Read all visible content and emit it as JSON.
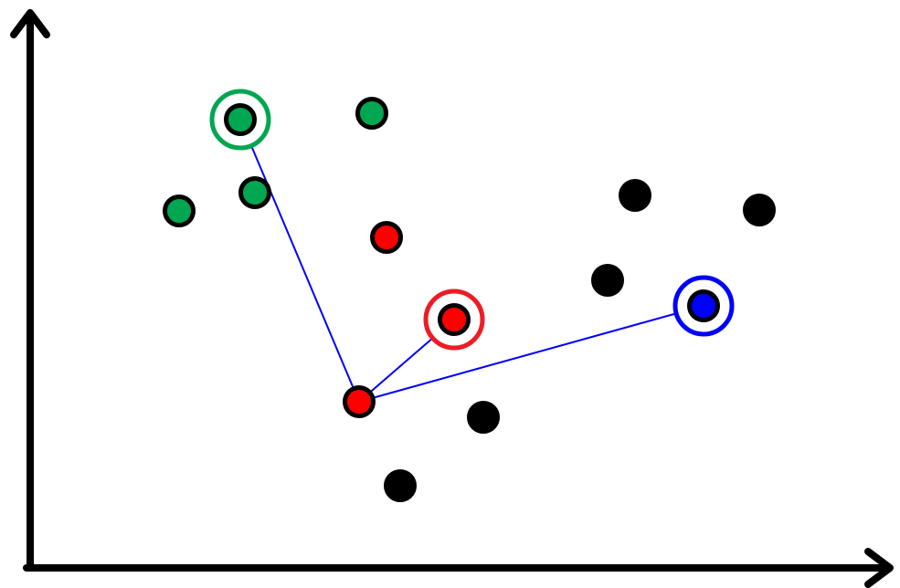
{
  "colors": {
    "background": "#ffffff",
    "axis": "#000000",
    "green": "#00a651",
    "red": "#ff0000",
    "blue": "#0000ff",
    "black": "#000000",
    "highlight_green": "#00a651",
    "highlight_red": "#ed1c24",
    "highlight_blue": "#0000ff",
    "connection": "#0000ff"
  },
  "points": [
    {
      "id": "p1",
      "color": "green",
      "highlighted": true,
      "highlight_color": "highlight_green"
    },
    {
      "id": "p2",
      "color": "green",
      "highlighted": false
    },
    {
      "id": "p3",
      "color": "green",
      "highlighted": false
    },
    {
      "id": "p4",
      "color": "green",
      "highlighted": false
    },
    {
      "id": "p5",
      "color": "red",
      "highlighted": false
    },
    {
      "id": "p6",
      "color": "red",
      "highlighted": true,
      "highlight_color": "highlight_red"
    },
    {
      "id": "p7",
      "color": "red",
      "highlighted": false,
      "is_origin": true
    },
    {
      "id": "p8",
      "color": "blue",
      "highlighted": true,
      "highlight_color": "highlight_blue"
    },
    {
      "id": "p9",
      "color": "black",
      "highlighted": false
    },
    {
      "id": "p10",
      "color": "black",
      "highlighted": false
    },
    {
      "id": "p11",
      "color": "black",
      "highlighted": false
    },
    {
      "id": "p12",
      "color": "black",
      "highlighted": false
    },
    {
      "id": "p13",
      "color": "black",
      "highlighted": false
    }
  ],
  "connections": [
    {
      "from": "p7",
      "to": "p1"
    },
    {
      "from": "p7",
      "to": "p6"
    },
    {
      "from": "p7",
      "to": "p8"
    }
  ]
}
